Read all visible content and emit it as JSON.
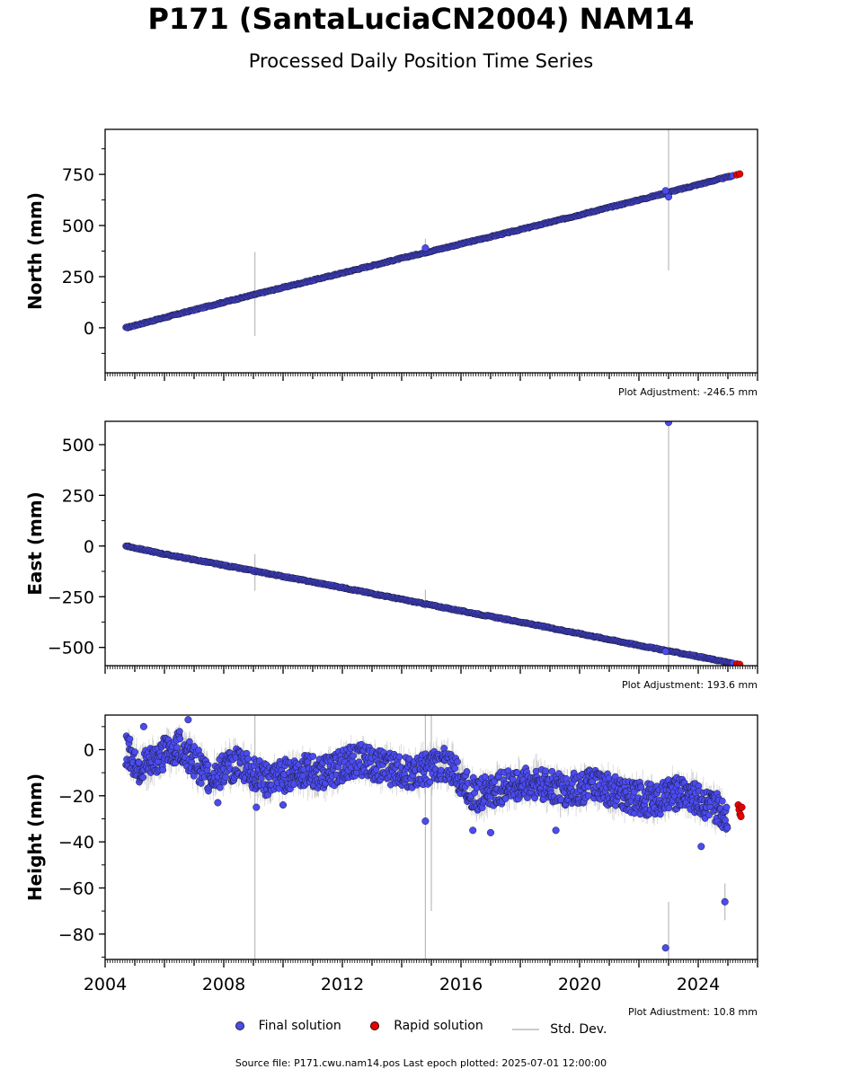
{
  "title": "P171 (SantaLuciaCN2004) NAM14",
  "subtitle": "Processed Daily Position Time Series",
  "source_note": "Source file: P171.cwu.nam14.pos  Last epoch plotted: 2025-07-01 12:00:00",
  "legend": {
    "final": "Final solution",
    "rapid": "Rapid solution",
    "std": "Std. Dev."
  },
  "colors": {
    "final": "#4b4bf0",
    "final_edge": "#1a1a3a",
    "rapid": "#e60000",
    "std": "#bbbbbb"
  },
  "chart_data": [
    {
      "type": "scatter",
      "ylabel": "North (mm)",
      "adjustment_label": "Plot Adjustment: -246.5 mm",
      "xlim": [
        2004.0,
        2026.0
      ],
      "ylim": [
        -220,
        970
      ],
      "yticks": [
        "0",
        "250",
        "500",
        "750"
      ],
      "ytick_values": [
        0,
        250,
        500,
        750
      ],
      "xticks": [],
      "trend": {
        "start": [
          2004.7,
          0
        ],
        "end": [
          2025.4,
          750
        ]
      },
      "final_series": [
        [
          2004.7,
          0
        ],
        [
          2006.0,
          50
        ],
        [
          2008.0,
          125
        ],
        [
          2010.0,
          197
        ],
        [
          2012.0,
          268
        ],
        [
          2014.0,
          340
        ],
        [
          2016.0,
          410
        ],
        [
          2018.0,
          480
        ],
        [
          2020.0,
          552
        ],
        [
          2022.0,
          625
        ],
        [
          2024.0,
          700
        ],
        [
          2025.2,
          745
        ]
      ],
      "rapid_series": [
        [
          2025.3,
          748
        ],
        [
          2025.4,
          752
        ]
      ],
      "outliers": [
        [
          2014.8,
          390
        ],
        [
          2023.0,
          640
        ],
        [
          2022.9,
          670
        ]
      ],
      "error_bars": [
        [
          2009.05,
          -40,
          370
        ],
        [
          2023.0,
          970,
          280
        ],
        [
          2014.8,
          370,
          435
        ]
      ]
    },
    {
      "type": "scatter",
      "ylabel": "East (mm)",
      "adjustment_label": "Plot Adjustment: 193.6 mm",
      "xlim": [
        2004.0,
        2026.0
      ],
      "ylim": [
        -590,
        615
      ],
      "yticks": [
        "500",
        "250",
        "0",
        "−250",
        "−500"
      ],
      "ytick_values": [
        500,
        250,
        0,
        -250,
        -500
      ],
      "xticks": [],
      "trend": {
        "start": [
          2004.7,
          0
        ],
        "end": [
          2025.4,
          -585
        ]
      },
      "final_series": [
        [
          2004.7,
          0
        ],
        [
          2006.0,
          -40
        ],
        [
          2008.0,
          -95
        ],
        [
          2010.0,
          -150
        ],
        [
          2012.0,
          -205
        ],
        [
          2014.0,
          -263
        ],
        [
          2016.0,
          -320
        ],
        [
          2018.0,
          -375
        ],
        [
          2020.0,
          -432
        ],
        [
          2022.0,
          -490
        ],
        [
          2024.0,
          -545
        ],
        [
          2025.2,
          -580
        ]
      ],
      "rapid_series": [
        [
          2025.3,
          -582
        ],
        [
          2025.4,
          -584
        ]
      ],
      "outliers": [
        [
          2023.0,
          610
        ],
        [
          2022.9,
          -520
        ]
      ],
      "error_bars": [
        [
          2009.05,
          -220,
          -40
        ],
        [
          2023.0,
          615,
          -590
        ],
        [
          2014.8,
          -310,
          -215
        ]
      ]
    },
    {
      "type": "scatter",
      "ylabel": "Height (mm)",
      "adjustment_label": "Plot Adjustment: 10.8 mm",
      "xlim": [
        2004.0,
        2026.0
      ],
      "ylim": [
        -91,
        15
      ],
      "yticks": [
        "0",
        "−20",
        "−40",
        "−60",
        "−80"
      ],
      "ytick_values": [
        0,
        -20,
        -40,
        -60,
        -80
      ],
      "xticks": [
        "2004",
        "2008",
        "2012",
        "2016",
        "2020",
        "2024"
      ],
      "xtick_values": [
        2004,
        2008,
        2012,
        2016,
        2020,
        2024
      ],
      "trend": {
        "start": [
          2004.7,
          -3
        ],
        "end": [
          2025.4,
          -27
        ]
      },
      "final_series": [
        [
          2004.7,
          0
        ],
        [
          2005.2,
          -8
        ],
        [
          2006.5,
          2
        ],
        [
          2007.5,
          -12
        ],
        [
          2008.5,
          -6
        ],
        [
          2009.5,
          -14
        ],
        [
          2010.5,
          -9
        ],
        [
          2011.5,
          -10
        ],
        [
          2012.5,
          -4
        ],
        [
          2013.5,
          -8
        ],
        [
          2014.5,
          -10
        ],
        [
          2015.5,
          -6
        ],
        [
          2016.5,
          -20
        ],
        [
          2017.5,
          -16
        ],
        [
          2018.5,
          -14
        ],
        [
          2019.5,
          -18
        ],
        [
          2020.5,
          -15
        ],
        [
          2021.5,
          -20
        ],
        [
          2022.5,
          -22
        ],
        [
          2023.5,
          -18
        ],
        [
          2024.5,
          -25
        ],
        [
          2025.0,
          -28
        ]
      ],
      "rapid_series": [
        [
          2025.35,
          -24
        ],
        [
          2025.38,
          -26
        ],
        [
          2025.41,
          -28
        ],
        [
          2025.44,
          -29
        ],
        [
          2025.47,
          -25
        ]
      ],
      "outliers": [
        [
          2005.3,
          10
        ],
        [
          2006.8,
          13
        ],
        [
          2014.8,
          -31
        ],
        [
          2016.4,
          -35
        ],
        [
          2017.0,
          -36
        ],
        [
          2019.2,
          -35
        ],
        [
          2022.9,
          -86
        ],
        [
          2024.1,
          -42
        ],
        [
          2024.9,
          -66
        ],
        [
          2007.8,
          -23
        ],
        [
          2009.1,
          -25
        ],
        [
          2010.0,
          -24
        ]
      ],
      "error_bars": [
        [
          2009.05,
          15,
          -91
        ],
        [
          2014.8,
          15,
          -91
        ],
        [
          2015.0,
          15,
          -70
        ],
        [
          2023.0,
          -66,
          -91
        ],
        [
          2024.9,
          -58,
          -74
        ]
      ]
    }
  ]
}
